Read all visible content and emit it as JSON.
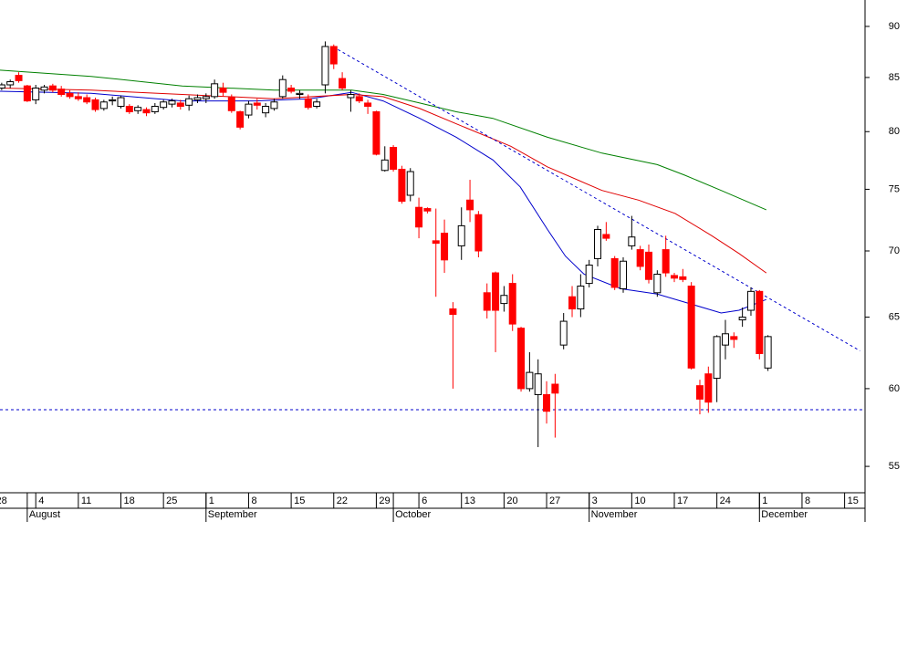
{
  "chart_data": {
    "type": "candlestick",
    "log_scale": true,
    "ylim": [
      53.4,
      92.7
    ],
    "yticks": [
      55,
      60,
      65,
      70,
      75,
      80,
      85,
      90
    ],
    "xlim": [
      0.8,
      102.4
    ],
    "xticks": [
      {
        "value": 0,
        "label": "28"
      },
      {
        "value": 5,
        "label": "4"
      },
      {
        "value": 10,
        "label": "11"
      },
      {
        "value": 15,
        "label": "18"
      },
      {
        "value": 20,
        "label": "25"
      },
      {
        "value": 25,
        "label": "1"
      },
      {
        "value": 30,
        "label": "8"
      },
      {
        "value": 35,
        "label": "15"
      },
      {
        "value": 40,
        "label": "22"
      },
      {
        "value": 45,
        "label": "29"
      },
      {
        "value": 50,
        "label": "6"
      },
      {
        "value": 55,
        "label": "13"
      },
      {
        "value": 60,
        "label": "20"
      },
      {
        "value": 65,
        "label": "27"
      },
      {
        "value": 70,
        "label": "3"
      },
      {
        "value": 75,
        "label": "10"
      },
      {
        "value": 80,
        "label": "17"
      },
      {
        "value": 85,
        "label": "24"
      },
      {
        "value": 90,
        "label": "1"
      },
      {
        "value": 95,
        "label": "8"
      },
      {
        "value": 100,
        "label": "15"
      }
    ],
    "month_labels": [
      {
        "value": 4,
        "label": "August"
      },
      {
        "value": 25,
        "label": "September"
      },
      {
        "value": 47,
        "label": "October"
      },
      {
        "value": 70,
        "label": "November"
      },
      {
        "value": 90,
        "label": "December"
      }
    ],
    "up_color": "#ffffff",
    "down_color": "#ff0000",
    "x": [
      1,
      2,
      3,
      4,
      5,
      6,
      7,
      8,
      9,
      10,
      11,
      12,
      13,
      14,
      15,
      16,
      17,
      18,
      19,
      20,
      21,
      22,
      23,
      24,
      25,
      26,
      27,
      28,
      29,
      30,
      31,
      32,
      33,
      34,
      35,
      36,
      37,
      38,
      39,
      40,
      41,
      42,
      43,
      44,
      45,
      46,
      47,
      48,
      49,
      50,
      51,
      52,
      53,
      54,
      55,
      56,
      57,
      58,
      59,
      60,
      61,
      62,
      63,
      64,
      65,
      66,
      67,
      68,
      69,
      70,
      71,
      72,
      73,
      74,
      75,
      76,
      77,
      78,
      79,
      80,
      81,
      82,
      83,
      84,
      85,
      86,
      87,
      88,
      89,
      90,
      91
    ],
    "open": [
      84.0,
      84.3,
      85.2,
      84.2,
      82.9,
      83.8,
      84.2,
      83.9,
      83.5,
      83.2,
      83.1,
      82.9,
      82.1,
      82.8,
      82.3,
      82.3,
      81.9,
      82.0,
      81.8,
      82.2,
      82.5,
      82.6,
      82.4,
      82.9,
      83.0,
      83.2,
      84.0,
      83.1,
      81.8,
      81.5,
      82.6,
      81.7,
      82.1,
      83.2,
      84.0,
      83.4,
      83.0,
      82.3,
      84.3,
      88.0,
      84.9,
      83.1,
      83.2,
      82.6,
      81.8,
      76.6,
      78.6,
      76.7,
      74.5,
      73.5,
      73.4,
      70.8,
      71.4,
      65.6,
      70.4,
      74.1,
      72.9,
      66.8,
      68.3,
      66.0,
      67.5,
      64.2,
      60.0,
      59.6,
      59.6,
      60.3,
      63.0,
      66.5,
      65.6,
      67.5,
      69.4,
      71.3,
      69.4,
      67.1,
      70.4,
      70.1,
      69.9,
      66.8,
      70.1,
      68.1,
      68.0,
      67.3,
      60.2,
      61.0,
      60.7,
      63.0,
      63.6,
      64.8,
      65.5,
      66.9,
      61.4
    ],
    "high": [
      84.5,
      84.8,
      85.5,
      84.3,
      84.3,
      84.3,
      84.4,
      84.2,
      83.8,
      83.6,
      83.4,
      83.1,
      82.9,
      83.2,
      83.3,
      82.5,
      82.4,
      82.2,
      82.6,
      82.9,
      83.0,
      82.9,
      83.3,
      83.4,
      83.5,
      84.8,
      84.5,
      83.4,
      81.9,
      82.8,
      83.0,
      82.6,
      83.0,
      85.2,
      84.3,
      83.8,
      83.4,
      83.0,
      88.5,
      88.2,
      85.5,
      83.8,
      83.5,
      82.9,
      81.9,
      78.7,
      78.8,
      77.0,
      76.8,
      74.3,
      73.5,
      73.4,
      72.5,
      66.1,
      73.5,
      75.8,
      73.2,
      67.5,
      68.4,
      67.3,
      68.2,
      64.3,
      62.5,
      62.0,
      60.5,
      61.0,
      65.3,
      67.3,
      68.2,
      69.3,
      72.0,
      72.3,
      69.6,
      69.5,
      72.8,
      70.4,
      70.5,
      68.5,
      71.2,
      68.3,
      68.6,
      67.6,
      60.6,
      61.5,
      63.7,
      64.8,
      63.9,
      65.7,
      67.2,
      67.0,
      63.7
    ],
    "low": [
      83.8,
      84.0,
      84.5,
      82.7,
      82.5,
      83.5,
      83.6,
      83.2,
      83.0,
      82.8,
      82.5,
      81.8,
      81.9,
      82.4,
      82.1,
      81.6,
      81.6,
      81.4,
      81.6,
      82.0,
      82.2,
      82.0,
      81.9,
      82.6,
      82.6,
      83.0,
      83.2,
      81.7,
      80.2,
      81.2,
      82.0,
      81.3,
      81.9,
      83.0,
      83.5,
      83.0,
      82.0,
      82.1,
      83.5,
      85.8,
      83.8,
      81.8,
      82.6,
      81.6,
      77.9,
      76.5,
      76.5,
      73.8,
      74.0,
      71.0,
      73.0,
      66.5,
      68.3,
      60.0,
      69.3,
      72.3,
      69.5,
      64.9,
      62.5,
      65.4,
      64.0,
      59.8,
      59.8,
      56.2,
      57.7,
      56.8,
      62.7,
      65.0,
      65.0,
      67.2,
      68.8,
      70.8,
      67.0,
      66.8,
      70.1,
      68.5,
      67.5,
      66.5,
      68.0,
      67.6,
      67.6,
      61.3,
      58.3,
      58.4,
      59.1,
      62.0,
      62.8,
      64.3,
      65.1,
      62.0,
      61.2
    ],
    "close": [
      84.3,
      84.6,
      84.7,
      82.8,
      84.0,
      84.1,
      83.8,
      83.4,
      83.2,
      83.0,
      82.7,
      82.0,
      82.7,
      82.9,
      83.1,
      81.8,
      82.2,
      81.7,
      82.3,
      82.7,
      82.8,
      82.3,
      83.0,
      83.1,
      83.2,
      84.4,
      83.6,
      81.9,
      80.4,
      82.5,
      82.4,
      82.3,
      82.7,
      84.8,
      83.7,
      83.5,
      82.2,
      82.7,
      88.0,
      86.3,
      84.0,
      83.4,
      82.8,
      82.3,
      78.0,
      77.5,
      76.7,
      74.0,
      76.5,
      71.9,
      73.2,
      70.6,
      69.3,
      65.2,
      72.0,
      73.3,
      70.0,
      65.5,
      65.5,
      66.6,
      64.5,
      60.0,
      61.1,
      61.0,
      58.5,
      59.7,
      64.7,
      65.6,
      67.3,
      68.9,
      71.7,
      71.0,
      67.2,
      69.2,
      71.1,
      68.8,
      67.8,
      68.2,
      68.3,
      67.9,
      67.8,
      61.4,
      59.3,
      59.1,
      63.6,
      63.8,
      63.4,
      65.0,
      66.9,
      62.4,
      63.6
    ],
    "lines": [
      {
        "color": "#0000cc",
        "x": [
          0.8,
          11.5,
          22.2,
          30.8,
          37.2,
          42.1,
          45.8,
          50.1,
          54.4,
          58.7,
          61.9,
          65.1,
          67.2,
          69.4,
          73.7,
          78.0,
          82.3,
          85.5,
          87.6,
          90.8
        ],
        "values": [
          83.7,
          83.5,
          82.8,
          82.8,
          83.0,
          83.6,
          82.8,
          81.2,
          79.5,
          77.5,
          75.2,
          71.7,
          69.6,
          68.2,
          67.1,
          66.7,
          65.9,
          65.3,
          65.5,
          66.3
        ]
      },
      {
        "color": "#e00000",
        "x": [
          0.8,
          11.5,
          22.2,
          33.0,
          42.1,
          45.8,
          50.1,
          54.4,
          60.8,
          65.1,
          71.5,
          75.8,
          80.1,
          84.4,
          87.6,
          90.8
        ],
        "values": [
          84.0,
          83.8,
          83.4,
          83.0,
          83.4,
          83.2,
          82.1,
          80.7,
          78.7,
          76.9,
          74.9,
          74.1,
          73.0,
          71.2,
          69.8,
          68.3
        ]
      },
      {
        "color": "#008000",
        "x": [
          0.8,
          11.5,
          22.2,
          33.0,
          42.1,
          45.8,
          50.1,
          54.4,
          58.7,
          65.1,
          71.5,
          78.0,
          81.2,
          85.5,
          90.8
        ],
        "values": [
          85.7,
          85.1,
          84.2,
          83.8,
          83.8,
          83.4,
          82.6,
          81.8,
          81.2,
          79.5,
          78.1,
          77.1,
          76.2,
          74.9,
          73.3
        ]
      },
      {
        "color": "#0000cc",
        "dashed": true,
        "x": [
          40.5,
          101.8
        ],
        "values": [
          87.7,
          62.6
        ]
      }
    ],
    "hlines": [
      {
        "value": 58.6,
        "color": "#0000cc",
        "dashed": true
      }
    ]
  }
}
